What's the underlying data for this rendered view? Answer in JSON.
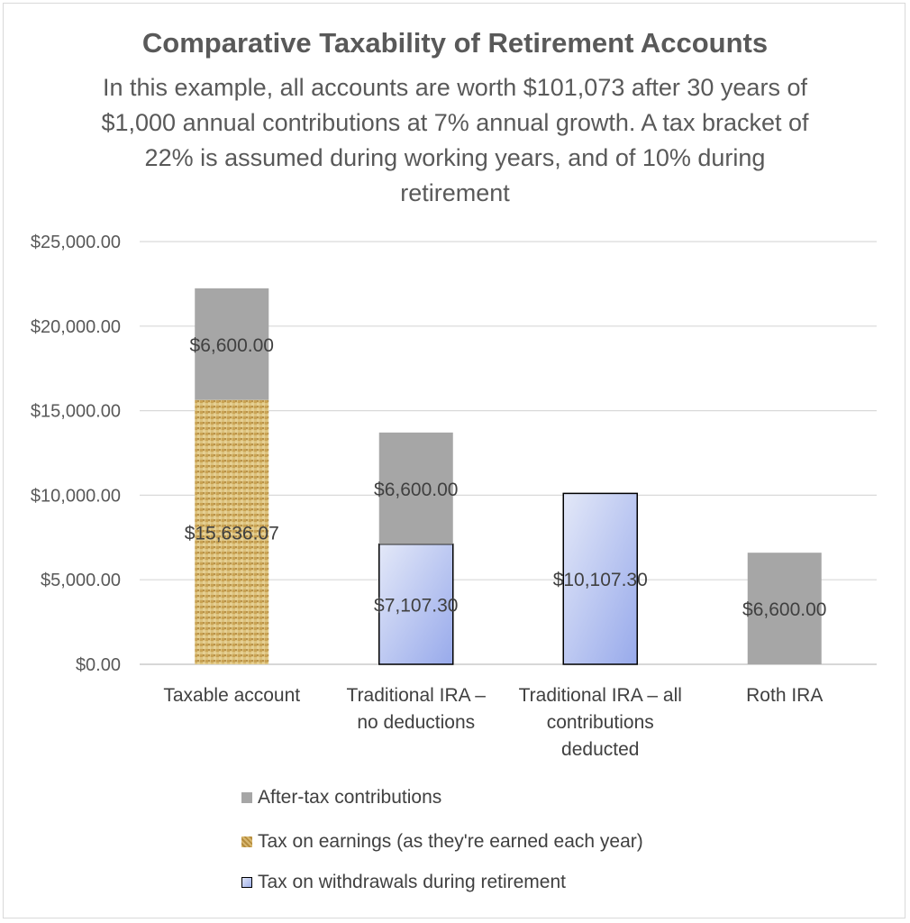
{
  "chart_data": {
    "type": "bar",
    "stacked": true,
    "title": "Comparative Taxability of Retirement Accounts",
    "subtitle": "In this example, all accounts are worth $101,073 after 30 years of $1,000 annual contributions at 7% annual growth. A tax bracket of 22% is assumed during working years, and of 10% during retirement",
    "categories": [
      "Taxable account",
      "Traditional IRA – no deductions",
      "Traditional IRA – all contributions deducted",
      "Roth IRA"
    ],
    "category_lines": [
      [
        "Taxable account"
      ],
      [
        "Traditional IRA –",
        "no deductions"
      ],
      [
        "Traditional IRA – all",
        "contributions",
        "deducted"
      ],
      [
        "Roth IRA"
      ]
    ],
    "series": [
      {
        "name": "Tax on earnings (as they're earned each year)",
        "values": [
          15636.07,
          0,
          0,
          0
        ],
        "labels": [
          "$15,636.07",
          "",
          "",
          ""
        ],
        "color": "#c9a45a"
      },
      {
        "name": "Tax on withdrawals during retirement",
        "values": [
          0,
          7107.3,
          10107.3,
          0
        ],
        "labels": [
          "",
          "$7,107.30",
          "$10,107.30",
          ""
        ],
        "color": "#b4c2ef"
      },
      {
        "name": "After-tax contributions",
        "values": [
          6600,
          6600,
          0,
          6600
        ],
        "labels": [
          "$6,600.00",
          "$6,600.00",
          "",
          "$6,600.00"
        ],
        "color": "#a6a6a6"
      }
    ],
    "ylim": [
      0,
      25000
    ],
    "yticks": [
      0,
      5000,
      10000,
      15000,
      20000,
      25000
    ],
    "ytick_labels": [
      "$0.00",
      "$5,000.00",
      "$10,000.00",
      "$15,000.00",
      "$20,000.00",
      "$25,000.00"
    ],
    "grid": true,
    "legend_position": "bottom",
    "legend": [
      "After-tax contributions",
      "Tax on earnings (as they're earned each year)",
      "Tax on withdrawals during retirement"
    ]
  }
}
